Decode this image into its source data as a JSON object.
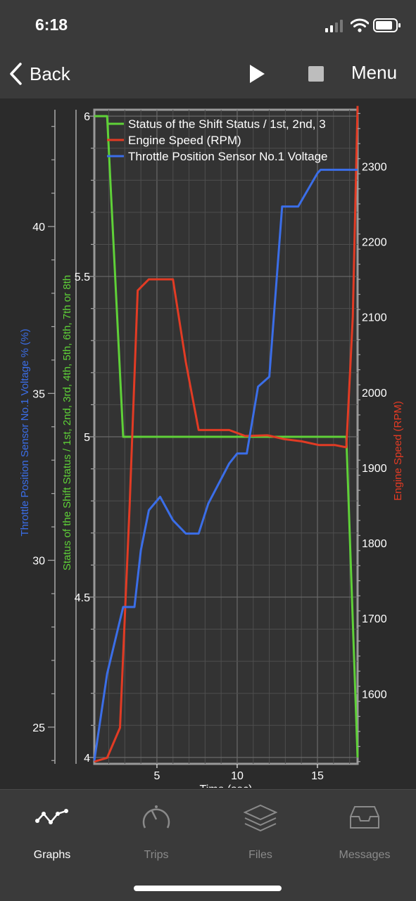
{
  "status": {
    "time": "6:18"
  },
  "nav": {
    "back_label": "Back",
    "menu_label": "Menu"
  },
  "tabs": [
    {
      "label": "Graphs",
      "icon": "graph-icon",
      "active": true
    },
    {
      "label": "Trips",
      "icon": "speedometer-icon",
      "active": false
    },
    {
      "label": "Files",
      "icon": "layers-icon",
      "active": false
    },
    {
      "label": "Messages",
      "icon": "inbox-icon",
      "active": false
    }
  ],
  "colors": {
    "green": "#5fd138",
    "red": "#e23b24",
    "blue": "#3b6ee8",
    "inactive": "#8a8a8a"
  },
  "chart_data": {
    "type": "line",
    "xlabel": "Time (sec)",
    "xlim": [
      1.1,
      17.5
    ],
    "x_ticks": [
      5,
      10,
      15
    ],
    "axes": {
      "blue": {
        "label": "Throttle Position Sensor No.1 Voltage % (%)",
        "ylim": [
          23.9,
          43.5
        ],
        "ticks": [
          25,
          30,
          35,
          40
        ]
      },
      "green": {
        "label": "Status of the Shift Status / 1st, 2nd, 3rd, 4th, 5th, 6th, 7th or 8th",
        "ylim": [
          3.98,
          6.02
        ],
        "ticks": [
          4,
          4.5,
          5,
          5.5,
          6
        ]
      },
      "red": {
        "label": "Engine Speed (RPM)",
        "ylim": [
          1507,
          2375
        ],
        "ticks": [
          1600,
          1700,
          1800,
          1900,
          2000,
          2100,
          2200,
          2300
        ]
      }
    },
    "series": [
      {
        "name": "Status of the Shift Status / 1st, 2nd, 3",
        "color": "#5fd138",
        "axis": "green",
        "points": [
          [
            1.1,
            6
          ],
          [
            1.9,
            6
          ],
          [
            2.9,
            5
          ],
          [
            16.8,
            5
          ],
          [
            17.5,
            4
          ]
        ]
      },
      {
        "name": "Engine Speed (RPM)",
        "color": "#e23b24",
        "axis": "red",
        "points": [
          [
            1.1,
            1510
          ],
          [
            1.9,
            1515
          ],
          [
            2.7,
            1555
          ],
          [
            3.3,
            1850
          ],
          [
            3.8,
            2135
          ],
          [
            4.5,
            2150
          ],
          [
            6.0,
            2150
          ],
          [
            6.8,
            2040
          ],
          [
            7.6,
            1950
          ],
          [
            8.9,
            1950
          ],
          [
            9.5,
            1950
          ],
          [
            10.5,
            1942
          ],
          [
            11.9,
            1943
          ],
          [
            12.9,
            1938
          ],
          [
            14.0,
            1935
          ],
          [
            15.1,
            1930
          ],
          [
            16.1,
            1930
          ],
          [
            16.8,
            1927
          ],
          [
            17.2,
            2100
          ],
          [
            17.5,
            2380
          ]
        ]
      },
      {
        "name": "Throttle Position Sensor No.1 Voltage",
        "color": "#3b6ee8",
        "axis": "blue",
        "points": [
          [
            1.1,
            24.0
          ],
          [
            1.9,
            26.6
          ],
          [
            2.9,
            28.6
          ],
          [
            3.6,
            28.6
          ],
          [
            4.0,
            30.3
          ],
          [
            4.5,
            31.5
          ],
          [
            5.2,
            31.9
          ],
          [
            6.0,
            31.2
          ],
          [
            6.8,
            30.8
          ],
          [
            7.6,
            30.8
          ],
          [
            8.2,
            31.7
          ],
          [
            9.5,
            32.9
          ],
          [
            10.0,
            33.2
          ],
          [
            10.6,
            33.2
          ],
          [
            11.3,
            35.2
          ],
          [
            12.0,
            35.5
          ],
          [
            12.8,
            40.6
          ],
          [
            13.8,
            40.6
          ],
          [
            15.0,
            41.6
          ],
          [
            15.2,
            41.7
          ],
          [
            17.5,
            41.7
          ]
        ]
      }
    ]
  }
}
